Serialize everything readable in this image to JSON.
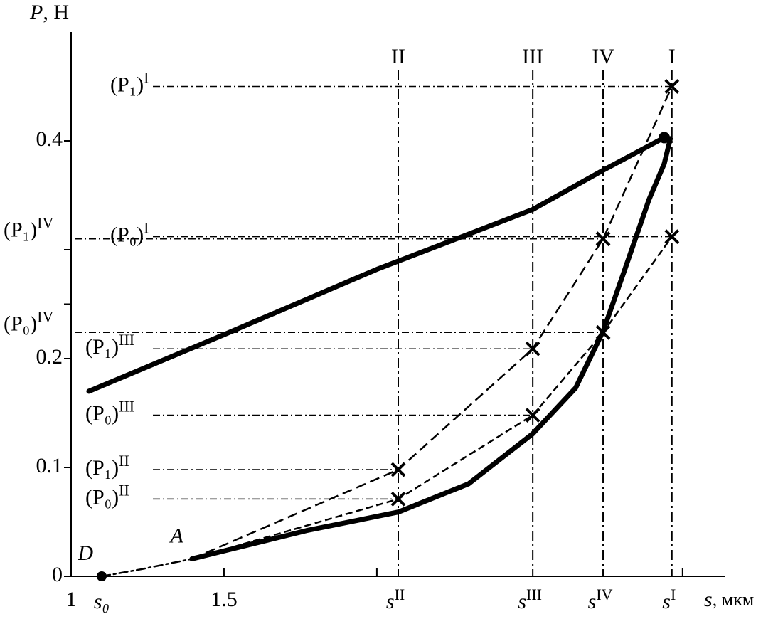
{
  "chart_data": {
    "type": "line",
    "y_label": "P",
    "y_unit": ", Н",
    "x_label": "s",
    "x_unit": ", мкм",
    "xlim": [
      1.0,
      3.14
    ],
    "ylim": [
      0,
      0.5
    ],
    "xticks": [
      1.0,
      1.5
    ],
    "minor_xticks": [
      2.0,
      3.0
    ],
    "yticks": [
      0,
      0.1,
      0.2,
      0.4
    ],
    "minor_yticks": [
      0.25,
      0.3
    ],
    "series": [
      {
        "style": "solid",
        "x": [
          1.058,
          1.5,
          2.0,
          2.51,
          2.74,
          2.94
        ],
        "y": [
          0.17,
          0.222,
          0.282,
          0.337,
          0.373,
          0.403
        ]
      },
      {
        "style": "solid",
        "x": [
          1.395,
          1.51,
          1.77,
          2.07,
          2.3,
          2.51,
          2.65,
          2.74,
          2.81,
          2.89,
          2.94,
          2.96
        ],
        "y": [
          0.016,
          0.024,
          0.042,
          0.059,
          0.085,
          0.131,
          0.173,
          0.225,
          0.281,
          0.346,
          0.379,
          0.402
        ]
      },
      {
        "style": "dashdot",
        "x": [
          1.1,
          1.23,
          1.395
        ],
        "y": [
          0,
          0.0065,
          0.016
        ]
      }
    ],
    "points": [
      {
        "label": "D",
        "x_label": "s₀",
        "x": 1.1,
        "y": 0
      },
      {
        "label": "A",
        "x": 1.395,
        "y": 0.016
      }
    ],
    "sections": [
      {
        "name": "II",
        "x": 2.07,
        "x_label": "s",
        "x_sup": "II",
        "p1": 0.098,
        "p1_label": "(P₁)",
        "p1_sup": "II",
        "p0": 0.071,
        "p0_label": "(P₀)",
        "p0_sup": "II"
      },
      {
        "name": "III",
        "x": 2.51,
        "x_label": "s",
        "x_sup": "III",
        "p1": 0.209,
        "p1_label": "(P₁)",
        "p1_sup": "III",
        "p0": 0.148,
        "p0_label": "(P₀)",
        "p0_sup": "III"
      },
      {
        "name": "IV",
        "x": 2.74,
        "x_label": "s",
        "x_sup": "IV",
        "p1": 0.31,
        "p1_label": "(P₁)",
        "p1_sup": "IV",
        "p0": 0.224,
        "p0_label": "(P₀)",
        "p0_sup": "IV"
      },
      {
        "name": "I",
        "x": 2.965,
        "x_label": "s",
        "x_sup": "I",
        "p1": 0.45,
        "p1_label": "(P₁)",
        "p1_sup": "I",
        "p0": 0.312,
        "p0_label": "(P₀)",
        "p0_sup": "I"
      }
    ]
  }
}
